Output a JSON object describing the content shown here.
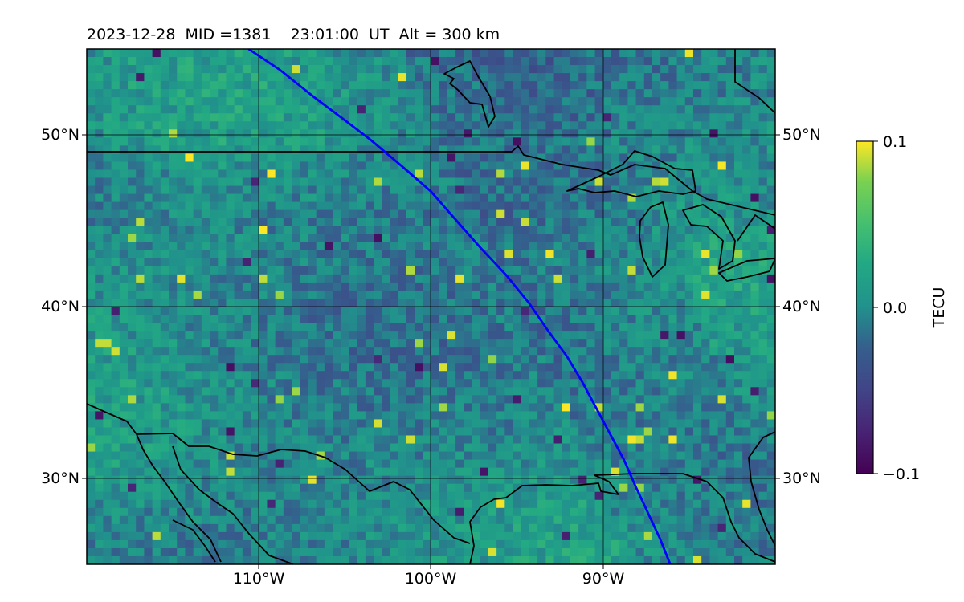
{
  "title": "2023-12-28  MID =1381    23:01:00  UT  Alt = 300 km",
  "map": {
    "lon_range": [
      -120,
      -80
    ],
    "lat_range": [
      25,
      55
    ],
    "lat_ticks": [
      {
        "value": 30,
        "label": "30°N"
      },
      {
        "value": 40,
        "label": "40°N"
      },
      {
        "value": 50,
        "label": "50°N"
      }
    ],
    "lon_ticks": [
      {
        "value": -110,
        "label": "110°W"
      },
      {
        "value": -100,
        "label": "100°W"
      },
      {
        "value": -90,
        "label": "90°W"
      }
    ],
    "track": {
      "color": "#0000ff",
      "points": [
        [
          -110.6,
          55.0
        ],
        [
          -108.8,
          53.8
        ],
        [
          -106.8,
          52.2
        ],
        [
          -105.2,
          51.0
        ],
        [
          -103.5,
          49.7
        ],
        [
          -101.6,
          48.1
        ],
        [
          -100.0,
          46.7
        ],
        [
          -98.6,
          45.1
        ],
        [
          -97.1,
          43.4
        ],
        [
          -95.6,
          41.8
        ],
        [
          -94.3,
          40.2
        ],
        [
          -93.2,
          38.6
        ],
        [
          -92.1,
          37.1
        ],
        [
          -91.2,
          35.6
        ],
        [
          -90.4,
          34.1
        ],
        [
          -89.6,
          32.6
        ],
        [
          -88.8,
          31.1
        ],
        [
          -88.1,
          29.5
        ],
        [
          -87.4,
          28.0
        ],
        [
          -86.7,
          26.5
        ],
        [
          -86.1,
          25.0
        ]
      ]
    }
  },
  "colorbar": {
    "label": "TECU",
    "vmin": -0.1,
    "vmax": 0.1,
    "ticks": [
      {
        "value": 0.1,
        "label": "0.1"
      },
      {
        "value": 0.0,
        "label": "0.0"
      },
      {
        "value": -0.1,
        "label": "−0.1"
      }
    ]
  }
}
